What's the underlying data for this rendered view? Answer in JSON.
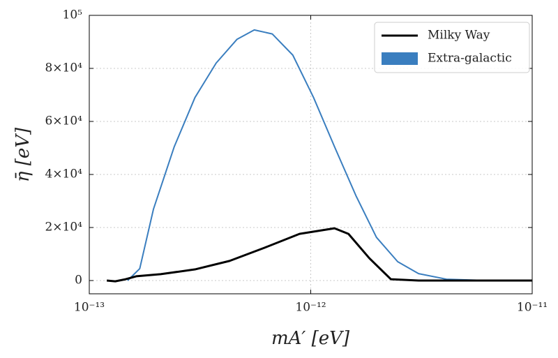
{
  "chart_data": {
    "type": "line",
    "xlabel": "mA′ [eV]",
    "ylabel": "η̄ [eV]",
    "xscale": "log",
    "grid": true,
    "legend": "upper right",
    "xlim": [
      1e-13,
      1e-11
    ],
    "xticks": [
      {
        "value": 1e-13,
        "label": "10⁻¹³"
      },
      {
        "value": 1e-12,
        "label": "10⁻¹²"
      },
      {
        "value": 1e-11,
        "label": "10⁻¹¹"
      }
    ],
    "ylim": [
      -5000,
      100000
    ],
    "yticks": [
      0,
      {
        "value": 20000,
        "label": "2×10⁴"
      },
      {
        "value": 40000,
        "label": "4×10⁴"
      },
      {
        "value": 60000,
        "label": "6×10⁴"
      },
      {
        "value": 80000,
        "label": "8×10⁴"
      },
      {
        "value": 100000,
        "label": "10⁵"
      }
    ],
    "series": [
      {
        "name": "Milky Way",
        "color": "#000000",
        "x": [
          1.2e-13,
          1.31e-13,
          1.46e-13,
          1.63e-13,
          2.1e-13,
          3e-13,
          4.3e-13,
          6.2e-13,
          8.9e-13,
          1.28e-12,
          1.48e-12,
          1.84e-12,
          2.3e-12,
          3.07e-12,
          1e-11
        ],
        "values": [
          0,
          -300,
          500,
          1600,
          2400,
          4200,
          7400,
          12400,
          17600,
          19700,
          17600,
          8400,
          500,
          0,
          0
        ]
      },
      {
        "name": "Extra-galactic",
        "color": "#3a7ebf",
        "x": [
          1.49e-13,
          1.69e-13,
          1.95e-13,
          2.42e-13,
          3e-13,
          3.74e-13,
          4.65e-13,
          5.56e-13,
          6.7e-13,
          8.3e-13,
          1.03e-12,
          1.28e-12,
          1.6e-12,
          1.98e-12,
          2.47e-12,
          3.07e-12,
          4.1e-12,
          6.3e-12,
          1e-11
        ],
        "values": [
          0,
          4500,
          27000,
          50500,
          69000,
          82000,
          91000,
          94500,
          93000,
          85000,
          69000,
          50500,
          32000,
          16300,
          7100,
          2600,
          500,
          0,
          0
        ]
      }
    ]
  }
}
